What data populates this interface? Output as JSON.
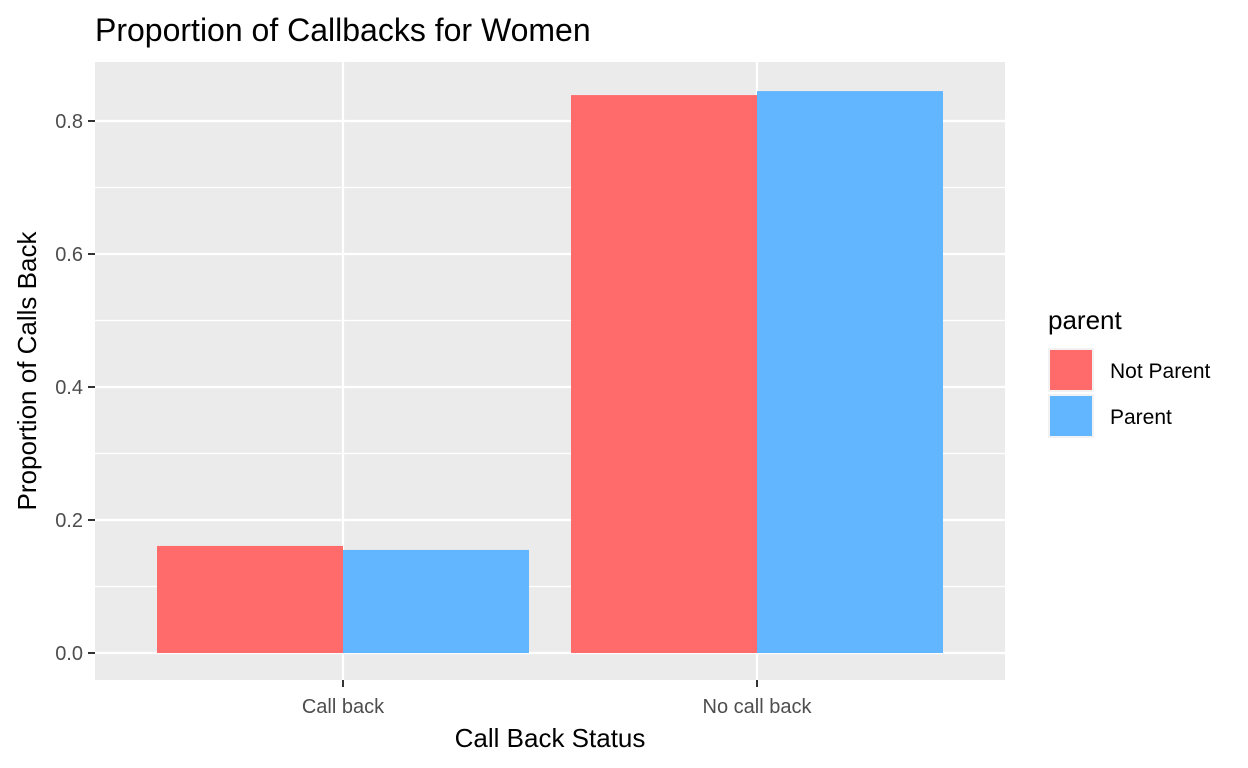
{
  "chart_data": {
    "type": "bar",
    "title": "Proportion of Callbacks for Women",
    "xlabel": "Call Back Status",
    "ylabel": "Proportion of Calls Back",
    "categories": [
      "Call back",
      "No call back"
    ],
    "series": [
      {
        "name": "Not Parent",
        "values": [
          0.161,
          0.839
        ],
        "color": "#ff6b6b"
      },
      {
        "name": "Parent",
        "values": [
          0.155,
          0.845
        ],
        "color": "#62b6ff"
      }
    ],
    "ylim": [
      0,
      0.88
    ],
    "yticks": [
      0.0,
      0.2,
      0.4,
      0.6,
      0.8
    ],
    "ytick_labels": [
      "0.0",
      "0.2",
      "0.4",
      "0.6",
      "0.8"
    ],
    "legend": {
      "title": "parent",
      "position": "right"
    },
    "grid": true,
    "panel_background": "#ebebeb"
  }
}
